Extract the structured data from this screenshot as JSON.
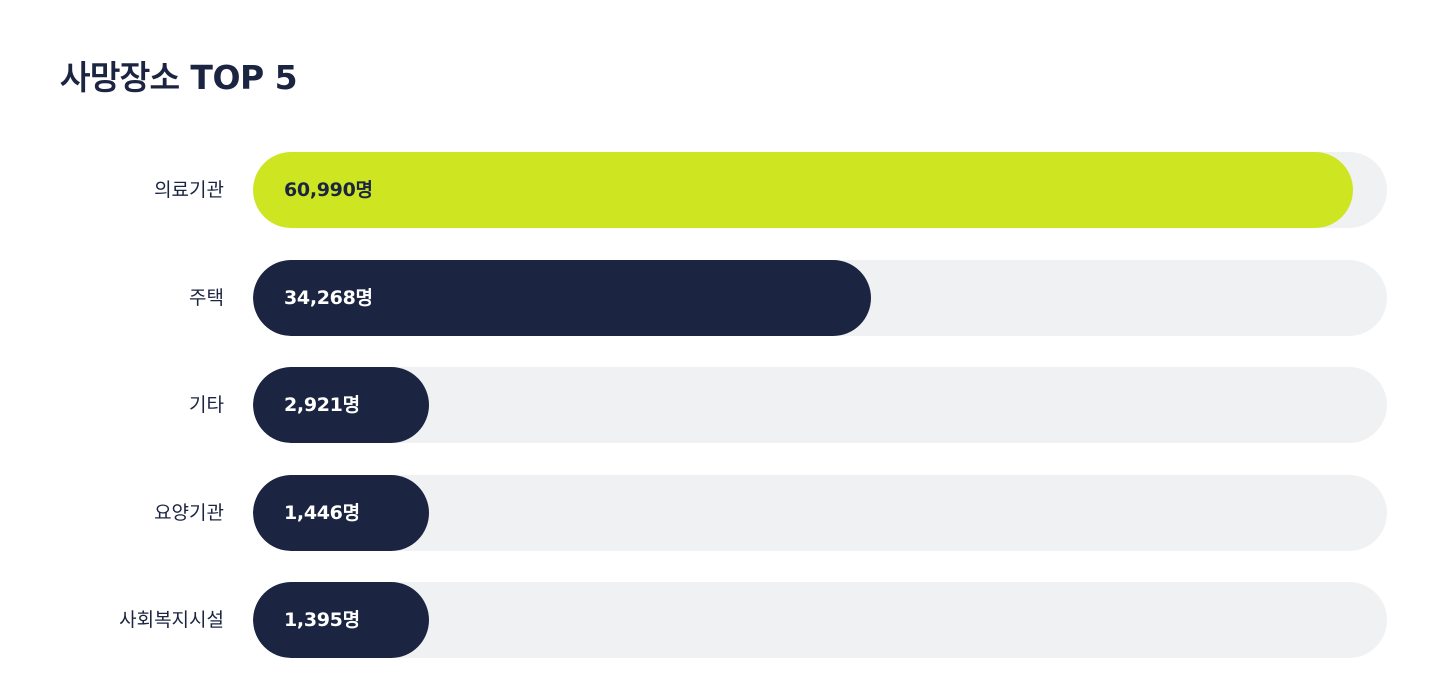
{
  "chart_data": {
    "type": "bar",
    "orientation": "horizontal",
    "title": "사망장소 TOP 5",
    "unit": "명",
    "categories": [
      "의료기관",
      "주택",
      "기타",
      "요양기관",
      "사회복지시설"
    ],
    "values": [
      60990,
      34268,
      2921,
      1446,
      1395
    ],
    "value_labels": [
      "60,990명",
      "34,268명",
      "2,921명",
      "1,446명",
      "1,395명"
    ],
    "highlight_index": 0,
    "colors": {
      "highlight": "#cde621",
      "bar": "#1b2541",
      "track": "#f0f1f3",
      "text": "#1b2541"
    }
  }
}
